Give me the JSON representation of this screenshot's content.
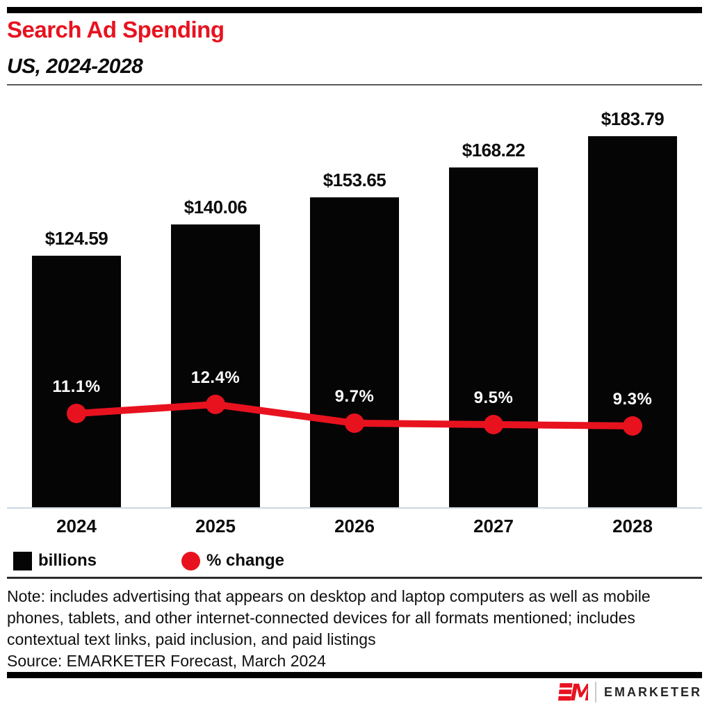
{
  "header": {
    "title": "Search Ad Spending",
    "subtitle": "US, 2024-2028",
    "accent_color": "#e8121f"
  },
  "chart_data": {
    "type": "bar",
    "title": "Search Ad Spending",
    "subtitle": "US, 2024-2028",
    "categories": [
      "2024",
      "2025",
      "2026",
      "2027",
      "2028"
    ],
    "series": [
      {
        "name": "billions",
        "type": "bar",
        "color": "#050505",
        "values": [
          124.59,
          140.06,
          153.65,
          168.22,
          183.79
        ],
        "labels": [
          "$124.59",
          "$140.06",
          "$153.65",
          "$168.22",
          "$183.79"
        ]
      },
      {
        "name": "% change",
        "type": "line",
        "color": "#e8121f",
        "values": [
          11.1,
          12.4,
          9.7,
          9.5,
          9.3
        ],
        "labels": [
          "11.1%",
          "12.4%",
          "9.7%",
          "9.5%",
          "9.3%"
        ]
      }
    ],
    "legend": [
      {
        "label": "billions",
        "swatch": "square",
        "color": "#050505"
      },
      {
        "label": "% change",
        "swatch": "circle",
        "color": "#e8121f"
      }
    ],
    "grid": "off",
    "legend_position": "bottom-left"
  },
  "footer": {
    "note": "Note: includes advertising that appears on desktop and laptop computers as well as mobile phones, tablets, and other internet-connected devices for all formats mentioned; includes contextual text links, paid inclusion, and paid listings",
    "source": "Source: EMARKETER Forecast, March 2024"
  },
  "branding": {
    "logo_mark": "EM",
    "logo_text": "EMARKETER",
    "logo_color": "#e8121f"
  }
}
